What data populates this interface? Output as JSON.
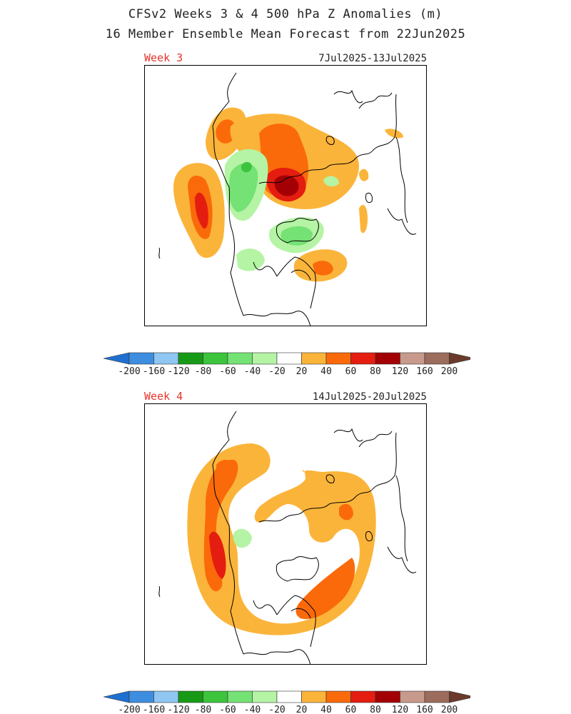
{
  "header": {
    "title_line1": "CFSv2 Weeks 3 & 4 500 hPa Z Anomalies (m)",
    "title_line2": "16 Member Ensemble Mean Forecast from 22Jun2025"
  },
  "panels": [
    {
      "week": "Week 3",
      "dates": "7Jul2025-13Jul2025"
    },
    {
      "week": "Week 4",
      "dates": "14Jul2025-20Jul2025"
    }
  ],
  "colorbar": {
    "tick_labels": [
      "-200",
      "-160",
      "-120",
      "-80",
      "-60",
      "-40",
      "-20",
      "20",
      "40",
      "60",
      "80",
      "120",
      "160",
      "200"
    ],
    "colors": [
      "#3d8ee0",
      "#8fc6f2",
      "#169a16",
      "#3cc43c",
      "#74e274",
      "#b4f4a4",
      "#ffffff",
      "#fbb43a",
      "#fa6a0a",
      "#e41d10",
      "#a30005",
      "#c89a8c",
      "#9c6c5c"
    ],
    "low_arrow_color": "#1f6fd0",
    "high_arrow_color": "#6b3a2a"
  },
  "colors": {
    "a20": "#fbb43a",
    "a40": "#fa6a0a",
    "a60": "#e41d10",
    "a80": "#a30005",
    "n20": "#b4f4a4",
    "n40": "#74e274",
    "n60": "#3cc43c",
    "coast": "#000000"
  }
}
